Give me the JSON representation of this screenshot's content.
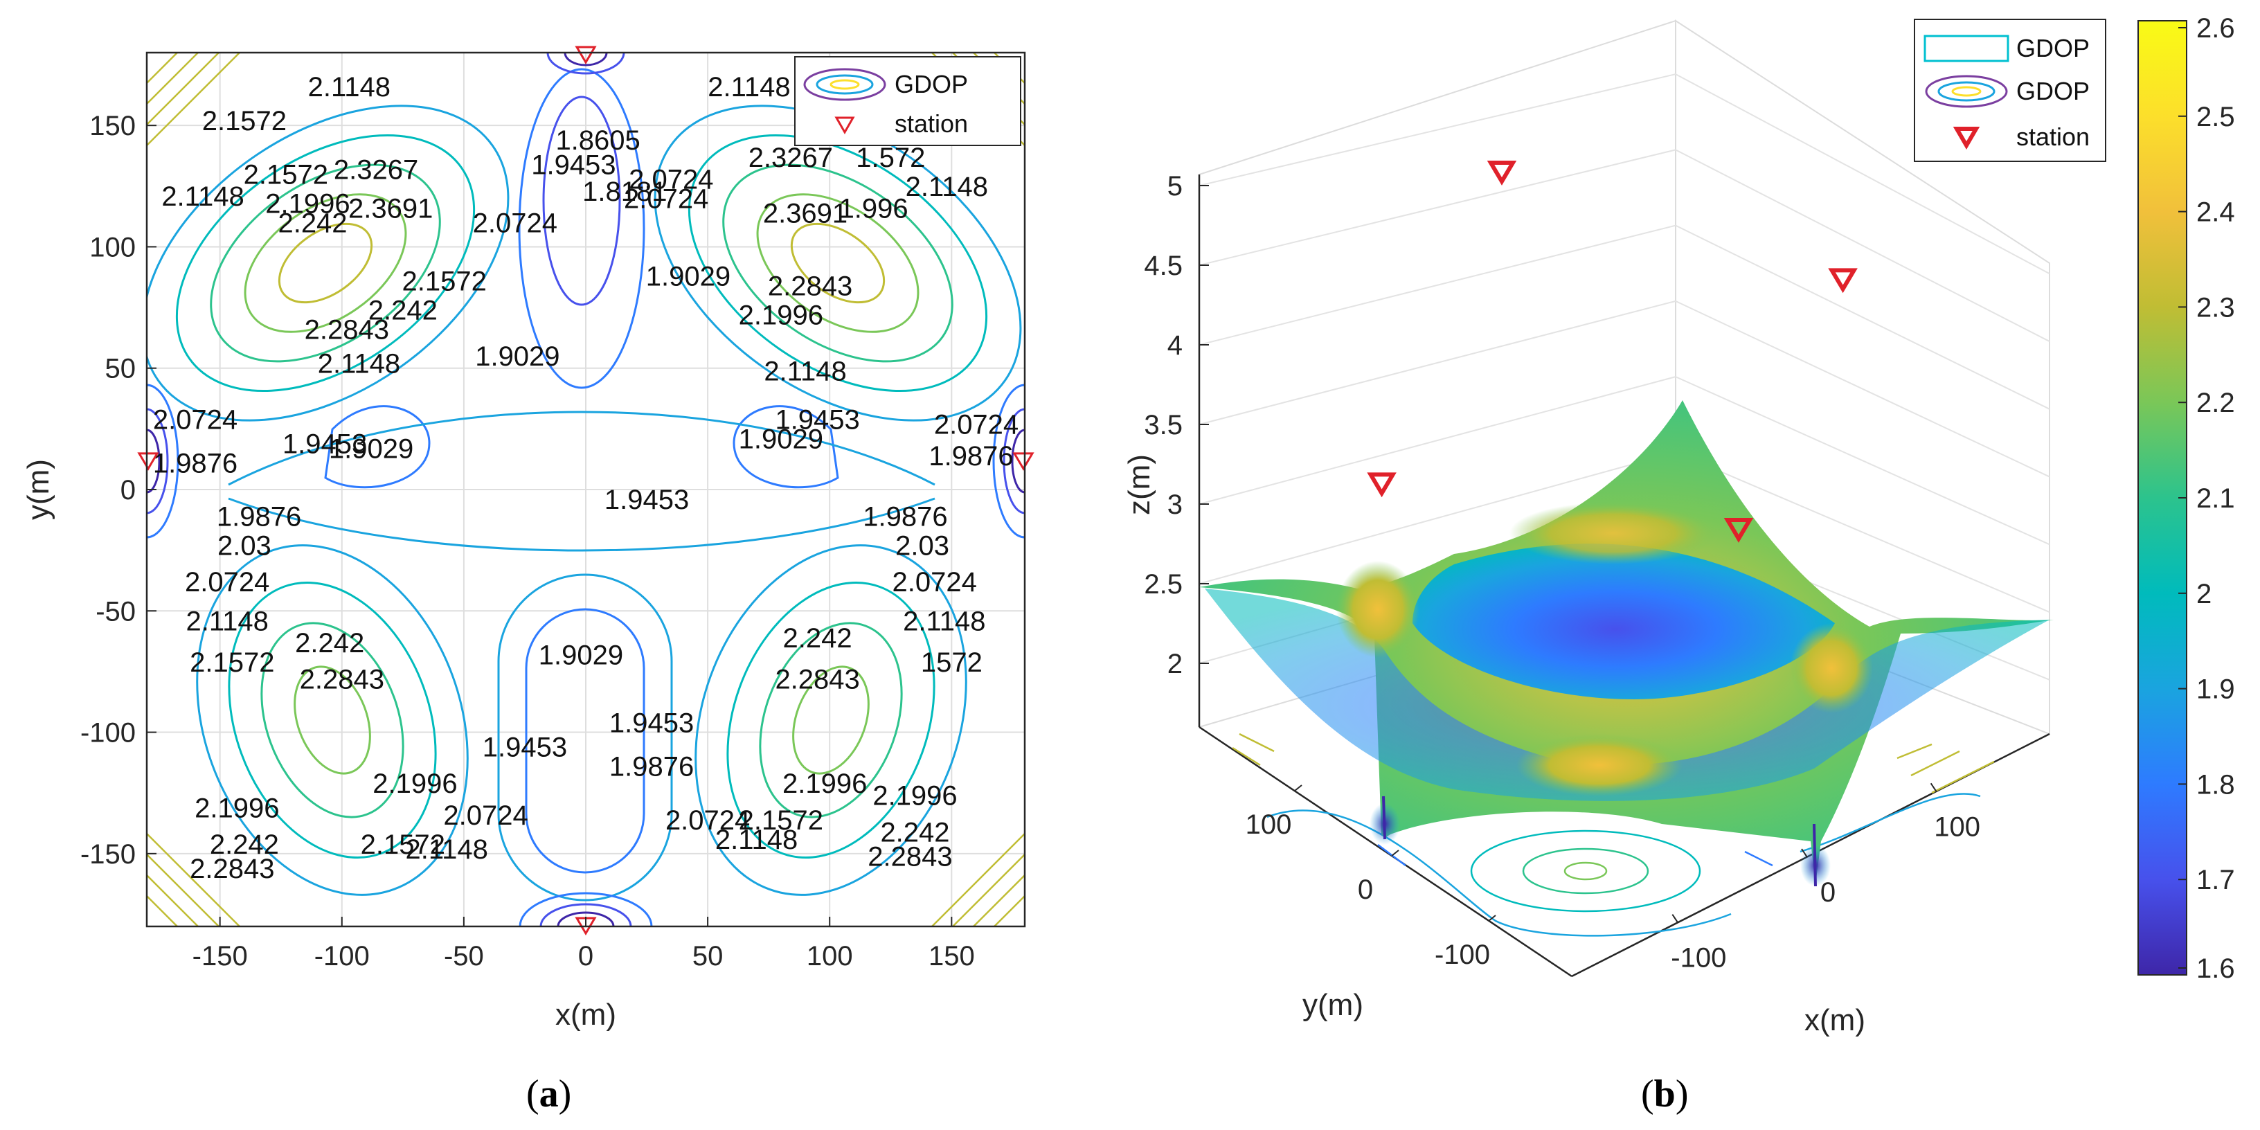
{
  "chart_data": [
    {
      "id": "a",
      "type": "contour",
      "caption_letter": "a",
      "xlabel": "x(m)",
      "ylabel": "y(m)",
      "xlim": [
        -180,
        180
      ],
      "ylim": [
        -180,
        180
      ],
      "xticks": [
        -150,
        -100,
        -50,
        0,
        50,
        100,
        150
      ],
      "yticks": [
        150,
        100,
        50,
        0,
        -50,
        -100,
        -150
      ],
      "grid": true,
      "legend": {
        "position": "top-right",
        "entries": [
          "GDOP",
          "station"
        ]
      },
      "stations": [
        {
          "x": 0,
          "y": 180
        },
        {
          "x": -180,
          "y": 12
        },
        {
          "x": 180,
          "y": 12
        },
        {
          "x": 0,
          "y": -180
        }
      ],
      "contour_labels": [
        {
          "text": "2.1572",
          "x": -140,
          "y": 148
        },
        {
          "text": "2.1148",
          "x": -97,
          "y": 162
        },
        {
          "text": "2.1572",
          "x": -123,
          "y": 126
        },
        {
          "text": "2.1996",
          "x": -114,
          "y": 114
        },
        {
          "text": "2.242",
          "x": -112,
          "y": 106
        },
        {
          "text": "2.1148",
          "x": -157,
          "y": 117
        },
        {
          "text": "2.3267",
          "x": -86,
          "y": 128
        },
        {
          "text": "2.3691",
          "x": -80,
          "y": 112
        },
        {
          "text": "2.2843",
          "x": -98,
          "y": 62
        },
        {
          "text": "2.242",
          "x": -75,
          "y": 70
        },
        {
          "text": "2.1572",
          "x": -58,
          "y": 82
        },
        {
          "text": "2.1148",
          "x": -93,
          "y": 48
        },
        {
          "text": "2.0724",
          "x": -29,
          "y": 106
        },
        {
          "text": "1.9453",
          "x": -5,
          "y": 130
        },
        {
          "text": "1.8605",
          "x": 5,
          "y": 140
        },
        {
          "text": "1.8181",
          "x": 16,
          "y": 119
        },
        {
          "text": "2.0724",
          "x": 33,
          "y": 116
        },
        {
          "text": "2.0724",
          "x": 35,
          "y": 124
        },
        {
          "text": "1.9029",
          "x": 42,
          "y": 84
        },
        {
          "text": "1.9029",
          "x": -28,
          "y": 51
        },
        {
          "text": "2.1148",
          "x": 67,
          "y": 162
        },
        {
          "text": "2.3267",
          "x": 84,
          "y": 133
        },
        {
          "text": "2.3691",
          "x": 90,
          "y": 110
        },
        {
          "text": "1.572",
          "x": 125,
          "y": 133
        },
        {
          "text": "2.1148",
          "x": 148,
          "y": 121
        },
        {
          "text": "1.996",
          "x": 118,
          "y": 112
        },
        {
          "text": "2.2843",
          "x": 92,
          "y": 80
        },
        {
          "text": "2.1996",
          "x": 80,
          "y": 68
        },
        {
          "text": "2.1148",
          "x": 90,
          "y": 45
        },
        {
          "text": "1.9453",
          "x": 95,
          "y": 25
        },
        {
          "text": "1.9029",
          "x": 80,
          "y": 17
        },
        {
          "text": "2.0724",
          "x": 163,
          "y": 23
        },
        {
          "text": "1.9876",
          "x": 158,
          "y": 10
        },
        {
          "text": "2.0724",
          "x": -163,
          "y": 25
        },
        {
          "text": "1.9876",
          "x": -165,
          "y": 7
        },
        {
          "text": "1.9453",
          "x": -107,
          "y": 15
        },
        {
          "text": "1.9029",
          "x": -88,
          "y": 13
        },
        {
          "text": "1.9453",
          "x": 25,
          "y": -8
        },
        {
          "text": "1.9876",
          "x": -134,
          "y": -15
        },
        {
          "text": "2.03",
          "x": -140,
          "y": -27
        },
        {
          "text": "2.0724",
          "x": -147,
          "y": -42
        },
        {
          "text": "2.1148",
          "x": -147,
          "y": -58
        },
        {
          "text": "2.1572",
          "x": -145,
          "y": -75
        },
        {
          "text": "1.9876",
          "x": 131,
          "y": -15
        },
        {
          "text": "2.03",
          "x": 138,
          "y": -27
        },
        {
          "text": "2.0724",
          "x": 143,
          "y": -42
        },
        {
          "text": "2.1148",
          "x": 147,
          "y": -58
        },
        {
          "text": "1572",
          "x": 150,
          "y": -75
        },
        {
          "text": "2.242",
          "x": -105,
          "y": -67
        },
        {
          "text": "2.2843",
          "x": -100,
          "y": -82
        },
        {
          "text": "2.242",
          "x": 95,
          "y": -65
        },
        {
          "text": "2.2843",
          "x": 95,
          "y": -82
        },
        {
          "text": "1.9029",
          "x": -2,
          "y": -72
        },
        {
          "text": "1.9453",
          "x": -25,
          "y": -110
        },
        {
          "text": "1.9453",
          "x": 27,
          "y": -100
        },
        {
          "text": "1.9876",
          "x": 27,
          "y": -118
        },
        {
          "text": "2.0724",
          "x": 50,
          "y": -140
        },
        {
          "text": "2.1148",
          "x": 70,
          "y": -148
        },
        {
          "text": "2.1572",
          "x": 80,
          "y": -140
        },
        {
          "text": "2.1996",
          "x": -70,
          "y": -125
        },
        {
          "text": "2.1572",
          "x": -75,
          "y": -150
        },
        {
          "text": "2.1148",
          "x": -57,
          "y": -152
        },
        {
          "text": "2.0724",
          "x": -41,
          "y": -138
        },
        {
          "text": "2.1996",
          "x": 98,
          "y": -125
        },
        {
          "text": "2.1996",
          "x": 135,
          "y": -130
        },
        {
          "text": "2.242",
          "x": 135,
          "y": -145
        },
        {
          "text": "2.2843",
          "x": 133,
          "y": -155
        },
        {
          "text": "2.1996",
          "x": -143,
          "y": -135
        },
        {
          "text": "2.242",
          "x": -140,
          "y": -150
        },
        {
          "text": "2.2843",
          "x": -145,
          "y": -160
        }
      ]
    },
    {
      "id": "b",
      "type": "surface3d",
      "caption_letter": "b",
      "xlabel": "x(m)",
      "ylabel": "y(m)",
      "zlabel": "z(m)",
      "zlim": [
        1.6,
        5
      ],
      "zticks": [
        "5",
        "4.5",
        "4",
        "3.5",
        "3",
        "2.5",
        "2"
      ],
      "xticks": [
        "-100",
        "0",
        "100"
      ],
      "yticks": [
        "100",
        "0",
        "-100"
      ],
      "legend": {
        "position": "top-right",
        "entries": [
          "GDOP",
          "GDOP",
          "station"
        ]
      },
      "colorbar": {
        "min": 1.6,
        "max": 2.6,
        "ticks": [
          "2.6",
          "2.5",
          "2.4",
          "2.3",
          "2.2",
          "2.1",
          "2",
          "1.9",
          "1.8",
          "1.7",
          "1.6"
        ],
        "colormap": [
          "#3e26a8",
          "#4751ec",
          "#2e7bff",
          "#1aa4df",
          "#00bbbc",
          "#2cc38d",
          "#7ac758",
          "#c0bd34",
          "#f1c03b",
          "#fcdf2b",
          "#f9fb15"
        ]
      },
      "stations": [
        {
          "x": 0,
          "y": 180,
          "z": 4.7
        },
        {
          "x": 180,
          "y": 12,
          "z": 4.4
        },
        {
          "x": -180,
          "y": 12,
          "z": 3.9
        },
        {
          "x": 0,
          "y": -180,
          "z": 4.1
        }
      ]
    }
  ],
  "colors": {
    "station_marker": "#e0212a",
    "axes": "#262626",
    "grid": "#dedede"
  }
}
